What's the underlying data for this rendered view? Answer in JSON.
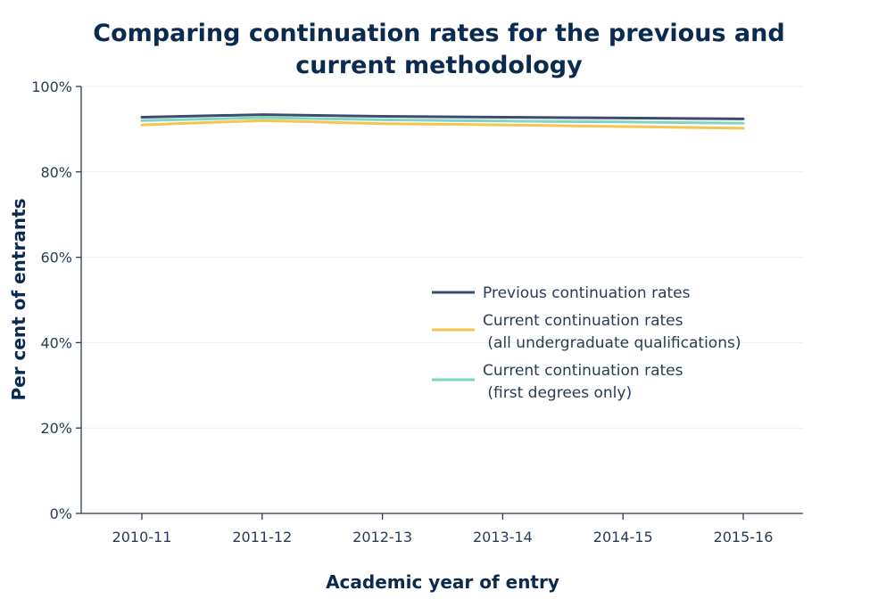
{
  "chart_data": {
    "type": "line",
    "title": [
      "Comparing continuation rates for the previous and",
      "current methodology"
    ],
    "xlabel": "Academic year of entry",
    "ylabel": "Per cent of entrants",
    "categories": [
      "2010-11",
      "2011-12",
      "2012-13",
      "2013-14",
      "2014-15",
      "2015-16"
    ],
    "ylim": [
      0,
      100
    ],
    "y_ticks": [
      0,
      20,
      40,
      60,
      80,
      100
    ],
    "y_tick_labels": [
      "0%",
      "20%",
      "40%",
      "60%",
      "80%",
      "100%"
    ],
    "grid": true,
    "legend_position": "center-right",
    "series": [
      {
        "name": "Previous continuation rates",
        "name_lines": [
          "Previous continuation rates"
        ],
        "color": "#3a4d6b",
        "values": [
          92.8,
          93.4,
          93.0,
          92.8,
          92.6,
          92.4
        ]
      },
      {
        "name": "Current continuation rates (all undergraduate qualifications)",
        "name_lines": [
          "Current continuation rates",
          " (all undergraduate qualifications)"
        ],
        "color": "#f3c64f",
        "values": [
          91.0,
          92.0,
          91.3,
          91.0,
          90.6,
          90.2
        ]
      },
      {
        "name": "Current continuation rates (first degrees only)",
        "name_lines": [
          "Current continuation rates",
          " (first degrees only)"
        ],
        "color": "#7fd4c3",
        "values": [
          92.0,
          92.7,
          92.2,
          91.9,
          91.7,
          91.4
        ]
      }
    ]
  }
}
